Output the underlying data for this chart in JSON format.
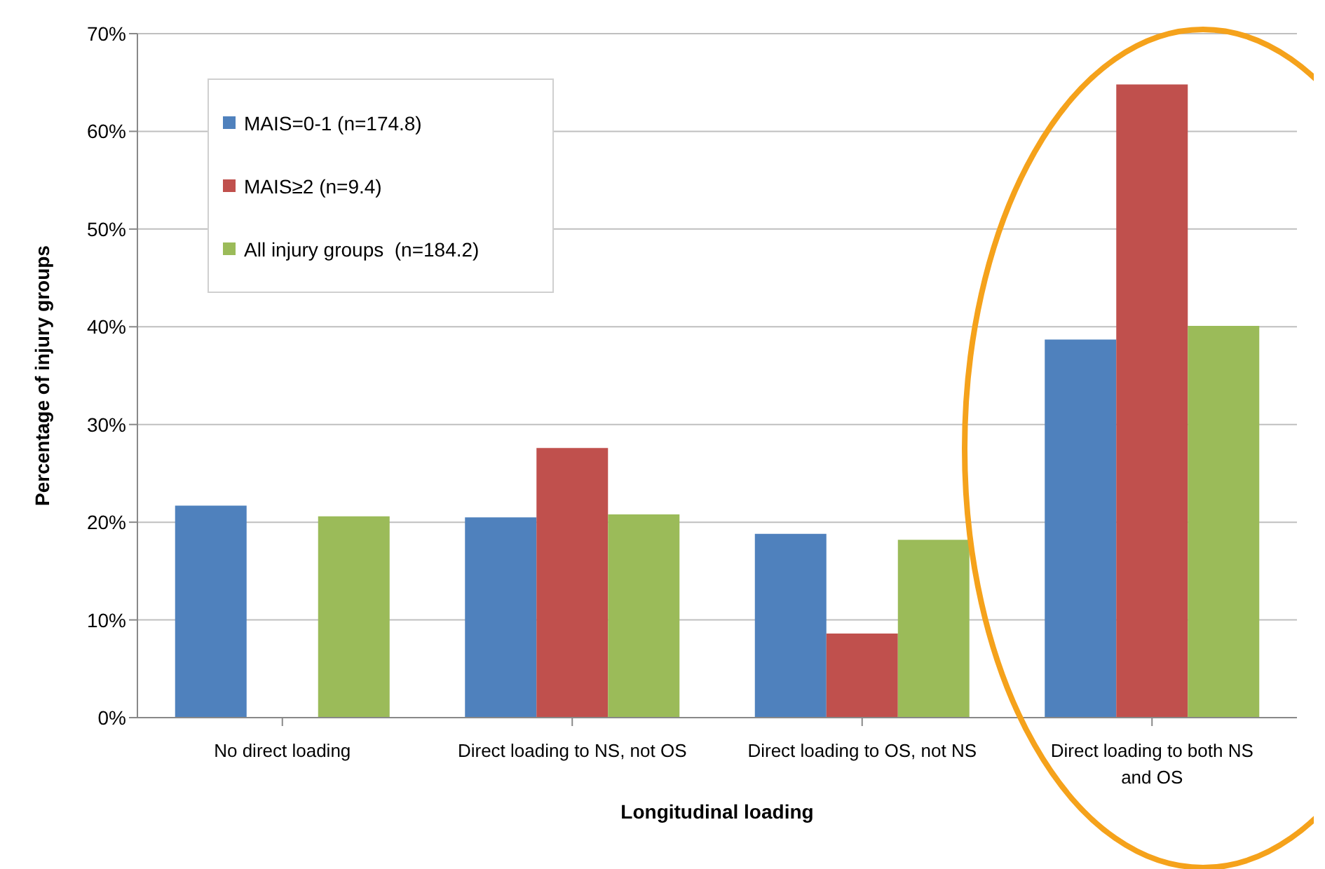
{
  "chart_data": {
    "type": "bar",
    "xlabel": "Longitudinal loading",
    "ylabel": "Percentage of injury groups",
    "categories": [
      "No direct loading",
      "Direct loading to NS, not OS",
      "Direct loading to OS, not NS",
      "Direct loading to both NS and OS"
    ],
    "series": [
      {
        "name": "MAIS=0-1 (n=174.8)",
        "color": "#4f81bd",
        "values": [
          21.7,
          20.5,
          18.8,
          38.7
        ]
      },
      {
        "name": "MAIS≥2 (n=9.4)",
        "color": "#c0504d",
        "values": [
          0,
          27.6,
          8.6,
          64.8
        ]
      },
      {
        "name": "All injury groups  (n=184.2)",
        "color": "#9bbb59",
        "values": [
          20.6,
          20.8,
          18.2,
          40.1
        ]
      }
    ],
    "ylim": [
      0,
      70
    ],
    "yticks": [
      {
        "value": 0,
        "label": "0%"
      },
      {
        "value": 10,
        "label": "10%"
      },
      {
        "value": 20,
        "label": "20%"
      },
      {
        "value": 30,
        "label": "30%"
      },
      {
        "value": 40,
        "label": "40%"
      },
      {
        "value": 50,
        "label": "50%"
      },
      {
        "value": 60,
        "label": "60%"
      },
      {
        "value": 70,
        "label": "70%"
      }
    ],
    "grid": "y",
    "legend": "top left"
  }
}
